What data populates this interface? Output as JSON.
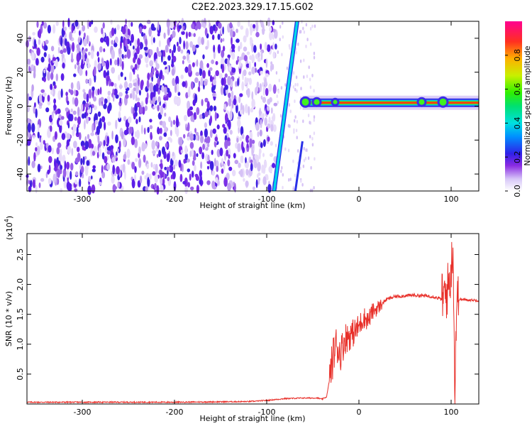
{
  "chart_data": [
    {
      "type": "heatmap",
      "title": "C2E2.2023.329.17.15.G02",
      "xlabel": "Height of straight line (km)",
      "ylabel": "Frequency (Hz)",
      "xlim": [
        -360,
        130
      ],
      "ylim": [
        -50,
        50
      ],
      "xticks": [
        "-300",
        "-200",
        "-100",
        "0",
        "100"
      ],
      "yticks": [
        "40",
        "20",
        "0",
        "-20",
        "-40"
      ],
      "colorbar": {
        "label": "Normalized spectral amplitude",
        "ticks": [
          "0.0",
          "0.2",
          "0.4",
          "0.6",
          "0.8"
        ],
        "range": [
          0,
          1
        ]
      },
      "features": {
        "noise_region_x": [
          -360,
          -90
        ],
        "slanted_band": {
          "x_at_-50Hz": -92,
          "x_at_50Hz": -67
        },
        "tone_frequency_hz": 2,
        "tone_x_range": [
          -55,
          130
        ]
      }
    },
    {
      "type": "line",
      "xlabel": "Height of straight line (km)",
      "ylabel": "SNR (10 * v/v)",
      "multiplier_label": "(x10",
      "multiplier_exp": "4",
      "xlim": [
        -360,
        130
      ],
      "ylim": [
        0,
        2.85
      ],
      "xticks": [
        "-300",
        "-200",
        "-100",
        "0",
        "100"
      ],
      "yticks": [
        "0.5",
        "1.0",
        "1.5",
        "2.0",
        "2.5"
      ],
      "color": "#e8302a",
      "series": [
        {
          "x": [
            -360,
            -300,
            -200,
            -120,
            -100,
            -80,
            -60,
            -45,
            -40,
            -35,
            -32,
            -28,
            -25,
            -20,
            -15,
            -10,
            -5,
            0,
            5,
            10,
            15,
            20,
            30,
            40,
            60,
            80,
            90,
            95,
            100,
            102,
            104,
            106,
            110,
            120,
            130
          ],
          "y": [
            0.03,
            0.03,
            0.03,
            0.04,
            0.06,
            0.09,
            0.1,
            0.1,
            0.08,
            0.12,
            0.4,
            0.8,
            1.0,
            0.85,
            1.1,
            1.15,
            1.2,
            1.3,
            1.45,
            1.4,
            1.55,
            1.6,
            1.75,
            1.8,
            1.82,
            1.8,
            1.75,
            1.85,
            2.2,
            2.7,
            0.2,
            1.75,
            1.75,
            1.74,
            1.73
          ]
        }
      ]
    }
  ]
}
